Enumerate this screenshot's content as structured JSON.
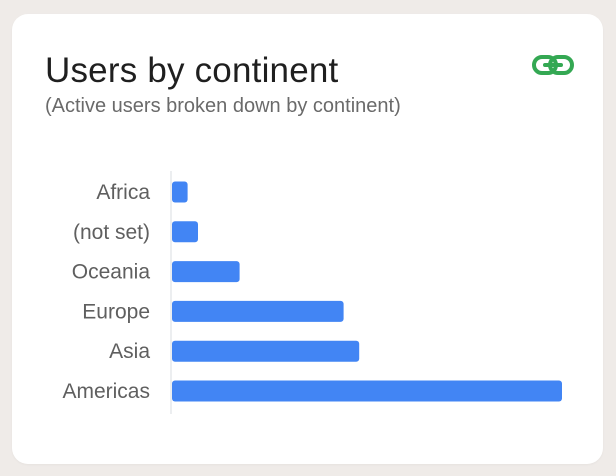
{
  "header": {
    "title": "Users by continent",
    "subtitle": "(Active users broken down by continent)",
    "link_icon": "link-icon"
  },
  "colors": {
    "bar": "#4285f4",
    "link_icon": "#34a853",
    "axis": "#dadce0"
  },
  "chart_data": {
    "type": "bar",
    "orientation": "horizontal",
    "categories": [
      "Africa",
      "(not set)",
      "Oceania",
      "Europe",
      "Asia",
      "Americas"
    ],
    "values": [
      3,
      5,
      13,
      33,
      36,
      75
    ],
    "xlim": [
      0,
      75
    ],
    "grid": false,
    "legend": "none"
  }
}
